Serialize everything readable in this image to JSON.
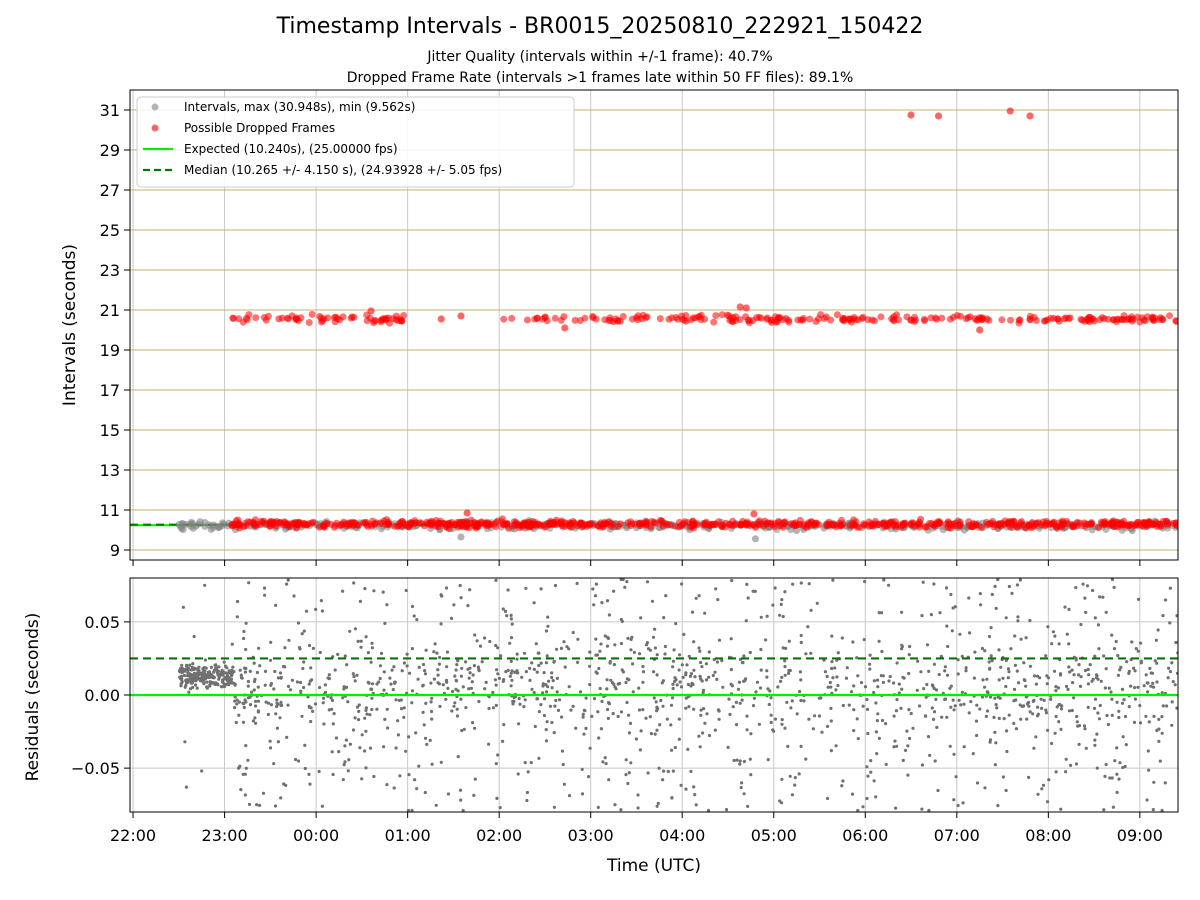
{
  "figure": {
    "title": "Timestamp Intervals - BR0015_20250810_222921_150422",
    "subtitle_1": "Jitter Quality (intervals within +/-1 frame): 40.7%",
    "subtitle_2": "Dropped Frame Rate (intervals >1 frames late within 50 FF files): 89.1%"
  },
  "chart_data": [
    {
      "type": "scatter",
      "panel": "top",
      "ylabel": "Intervals (seconds)",
      "xlabel": "",
      "xlim": [
        "21:58",
        "09:25"
      ],
      "ylim": [
        8.5,
        32
      ],
      "ytick_labels": [
        "9",
        "11",
        "13",
        "15",
        "17",
        "19",
        "21",
        "23",
        "25",
        "27",
        "29",
        "31"
      ],
      "grid": {
        "horizontal": true,
        "vertical": true,
        "horizontal_color": "#c8b070"
      },
      "legend": {
        "placement": "top-left",
        "entries": [
          {
            "label": "Intervals, max (30.948s), min (9.562s)",
            "marker": "circle",
            "color": "#808080"
          },
          {
            "label": "Possible Dropped Frames",
            "marker": "circle",
            "color": "#ff0000"
          },
          {
            "label": "Expected (10.240s), (25.00000 fps)",
            "marker": "line",
            "color": "#00ee00"
          },
          {
            "label": "Median (10.265 +/- 4.150 s), (24.93928 +/- 5.05 fps)",
            "marker": "dashed-line",
            "color": "#007700"
          }
        ]
      },
      "reference_lines": [
        {
          "label": "Expected",
          "y": 10.24,
          "style": "solid",
          "color": "#00ee00",
          "x_range": [
            [
              "21:58",
              "23:05"
            ],
            [
              "01:00",
              "01:55"
            ]
          ]
        },
        {
          "label": "Median",
          "y": 10.265,
          "style": "dashed",
          "color": "#007700",
          "x_range": [
            [
              "21:58",
              "23:05"
            ],
            [
              "01:00",
              "01:55"
            ]
          ]
        }
      ],
      "series": [
        {
          "label": "Intervals",
          "color": "#808080",
          "points": [
            [
              "22:32",
              10.32
            ],
            [
              "22:38",
              10.18
            ],
            [
              "22:44",
              10.41
            ],
            [
              "22:50",
              10.25
            ],
            [
              "22:56",
              10.12
            ],
            [
              "23:10",
              10.22
            ],
            [
              "23:40",
              10.05
            ],
            [
              "00:20",
              10.18
            ],
            [
              "00:55",
              10.35
            ],
            [
              "01:35",
              9.65
            ],
            [
              "02:10",
              10.05
            ],
            [
              "02:50",
              10.1
            ],
            [
              "03:30",
              10.12
            ],
            [
              "04:05",
              10.02
            ],
            [
              "04:48",
              9.562
            ],
            [
              "05:15",
              9.98
            ],
            [
              "05:50",
              10.1
            ],
            [
              "06:20",
              10.05
            ],
            [
              "07:05",
              10.0
            ],
            [
              "07:45",
              10.1
            ],
            [
              "08:25",
              10.12
            ],
            [
              "08:55",
              9.98
            ],
            [
              "09:15",
              10.1
            ]
          ],
          "band": {
            "x_range": [
              "22:30",
              "09:25"
            ],
            "y_range": [
              9.95,
              10.5
            ]
          }
        },
        {
          "label": "Possible Dropped Frames",
          "color": "#ff0000",
          "points": [
            [
              "06:30",
              30.75
            ],
            [
              "06:48",
              30.7
            ],
            [
              "07:35",
              30.948
            ],
            [
              "07:48",
              30.7
            ],
            [
              "04:38",
              21.15
            ],
            [
              "04:42",
              21.1
            ],
            [
              "02:43",
              20.1
            ],
            [
              "07:15",
              20.0
            ],
            [
              "01:22",
              20.55
            ],
            [
              "01:35",
              20.7
            ],
            [
              "00:36",
              20.95
            ],
            [
              "04:47",
              10.8
            ],
            [
              "01:39",
              10.85
            ]
          ],
          "bands": [
            {
              "x_range": [
                "23:05",
                "00:58"
              ],
              "y_range": [
                20.25,
                20.85
              ]
            },
            {
              "x_range": [
                "01:55",
                "02:55"
              ],
              "y_range": [
                20.35,
                20.7
              ]
            },
            {
              "x_range": [
                "02:55",
                "09:25"
              ],
              "y_range": [
                20.3,
                20.8
              ]
            },
            {
              "x_range": [
                "23:03",
                "09:25"
              ],
              "y_range": [
                10.05,
                10.55
              ]
            }
          ]
        }
      ]
    },
    {
      "type": "scatter",
      "panel": "bottom",
      "ylabel": "Residuals (seconds)",
      "xlabel": "Time (UTC)",
      "xlim": [
        "21:58",
        "09:25"
      ],
      "ylim": [
        -0.08,
        0.08
      ],
      "ytick_labels": [
        "−0.05",
        "0.00",
        "0.05"
      ],
      "xtick_labels": [
        "22:00",
        "23:00",
        "00:00",
        "01:00",
        "02:00",
        "03:00",
        "04:00",
        "05:00",
        "06:00",
        "07:00",
        "08:00",
        "09:00"
      ],
      "grid": {
        "horizontal": true,
        "vertical": true
      },
      "reference_lines": [
        {
          "label": "Expected",
          "y": 0.0,
          "style": "solid",
          "color": "#00ee00"
        },
        {
          "label": "Median",
          "y": 0.025,
          "style": "dashed",
          "color": "#007700"
        }
      ],
      "series": [
        {
          "label": "Residuals",
          "color": "#707070",
          "clusters": [
            {
              "x_range": [
                "22:30",
                "23:05"
              ],
              "y_range": [
                -0.005,
                0.03
              ],
              "note": "dense"
            },
            {
              "x_range": [
                "23:05",
                "09:25"
              ],
              "y_range": [
                -0.08,
                0.08
              ],
              "note": "spread"
            }
          ]
        }
      ]
    }
  ]
}
